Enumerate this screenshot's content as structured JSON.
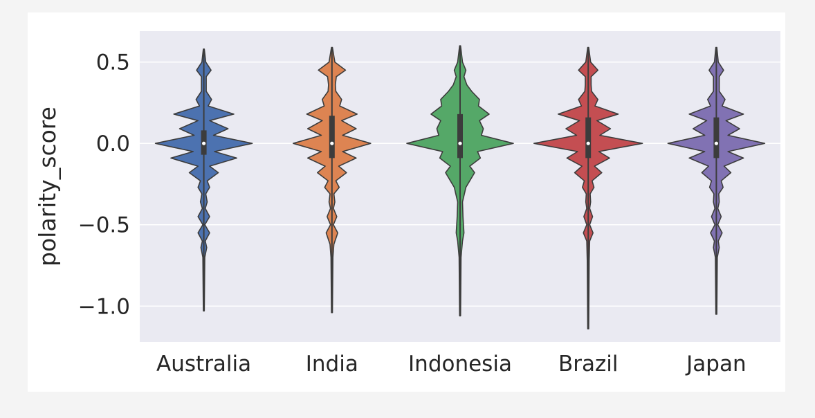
{
  "chart_data": {
    "type": "violin",
    "title": "",
    "xlabel": "",
    "ylabel": "polarity_score",
    "ylim": [
      -1.22,
      0.69
    ],
    "yticks": [
      0.5,
      0.0,
      -0.5,
      -1.0
    ],
    "ytick_labels": [
      "0.5",
      "0.0",
      "−0.5",
      "−1.0"
    ],
    "categories": [
      "Australia",
      "India",
      "Indonesia",
      "Brazil",
      "Japan"
    ],
    "grid": true,
    "legend": "none",
    "colors": {
      "Australia": "#4c72b0",
      "India": "#dd8452",
      "Indonesia": "#55a868",
      "Brazil": "#c44e52",
      "Japan": "#8172b3",
      "plot_background": "#eaeaf2",
      "grid": "#ffffff",
      "outline": "#3c3c3c"
    },
    "series": [
      {
        "category": "Australia",
        "range": [
          -1.03,
          0.58
        ],
        "median": 0.0,
        "quartiles": [
          -0.07,
          0.08
        ],
        "density": [
          [
            -1.03,
            0.01
          ],
          [
            -0.7,
            0.02
          ],
          [
            -0.64,
            0.06
          ],
          [
            -0.6,
            0.03
          ],
          [
            -0.55,
            0.12
          ],
          [
            -0.5,
            0.02
          ],
          [
            -0.45,
            0.12
          ],
          [
            -0.4,
            0.03
          ],
          [
            -0.36,
            0.07
          ],
          [
            -0.31,
            0.04
          ],
          [
            -0.27,
            0.12
          ],
          [
            -0.23,
            0.07
          ],
          [
            -0.18,
            0.3
          ],
          [
            -0.14,
            0.12
          ],
          [
            -0.09,
            0.68
          ],
          [
            -0.05,
            0.22
          ],
          [
            0.0,
            1.0
          ],
          [
            0.05,
            0.2
          ],
          [
            0.09,
            0.5
          ],
          [
            0.14,
            0.12
          ],
          [
            0.18,
            0.62
          ],
          [
            0.23,
            0.09
          ],
          [
            0.27,
            0.16
          ],
          [
            0.32,
            0.05
          ],
          [
            0.36,
            0.05
          ],
          [
            0.41,
            0.05
          ],
          [
            0.45,
            0.15
          ],
          [
            0.5,
            0.04
          ],
          [
            0.58,
            0.01
          ]
        ]
      },
      {
        "category": "India",
        "range": [
          -1.04,
          0.59
        ],
        "median": 0.0,
        "quartiles": [
          -0.09,
          0.17
        ],
        "density": [
          [
            -1.04,
            0.01
          ],
          [
            -0.7,
            0.02
          ],
          [
            -0.62,
            0.04
          ],
          [
            -0.55,
            0.12
          ],
          [
            -0.5,
            0.03
          ],
          [
            -0.45,
            0.1
          ],
          [
            -0.4,
            0.03
          ],
          [
            -0.36,
            0.06
          ],
          [
            -0.31,
            0.04
          ],
          [
            -0.27,
            0.15
          ],
          [
            -0.23,
            0.08
          ],
          [
            -0.18,
            0.3
          ],
          [
            -0.14,
            0.14
          ],
          [
            -0.09,
            0.5
          ],
          [
            -0.05,
            0.22
          ],
          [
            0.0,
            0.8
          ],
          [
            0.05,
            0.22
          ],
          [
            0.09,
            0.5
          ],
          [
            0.14,
            0.2
          ],
          [
            0.18,
            0.52
          ],
          [
            0.23,
            0.16
          ],
          [
            0.27,
            0.2
          ],
          [
            0.32,
            0.08
          ],
          [
            0.36,
            0.07
          ],
          [
            0.41,
            0.09
          ],
          [
            0.45,
            0.28
          ],
          [
            0.5,
            0.06
          ],
          [
            0.59,
            0.01
          ]
        ]
      },
      {
        "category": "Indonesia",
        "range": [
          -1.06,
          0.6
        ],
        "median": 0.0,
        "quartiles": [
          -0.09,
          0.18
        ],
        "density": [
          [
            -1.06,
            0.01
          ],
          [
            -0.7,
            0.02
          ],
          [
            -0.6,
            0.05
          ],
          [
            -0.55,
            0.08
          ],
          [
            -0.45,
            0.06
          ],
          [
            -0.36,
            0.05
          ],
          [
            -0.27,
            0.12
          ],
          [
            -0.18,
            0.3
          ],
          [
            -0.14,
            0.2
          ],
          [
            -0.09,
            0.42
          ],
          [
            -0.05,
            0.36
          ],
          [
            0.0,
            1.1
          ],
          [
            0.05,
            0.44
          ],
          [
            0.09,
            0.48
          ],
          [
            0.14,
            0.4
          ],
          [
            0.18,
            0.6
          ],
          [
            0.23,
            0.38
          ],
          [
            0.27,
            0.4
          ],
          [
            0.32,
            0.24
          ],
          [
            0.36,
            0.14
          ],
          [
            0.41,
            0.08
          ],
          [
            0.45,
            0.12
          ],
          [
            0.5,
            0.05
          ],
          [
            0.6,
            0.01
          ]
        ]
      },
      {
        "category": "Brazil",
        "range": [
          -1.14,
          0.59
        ],
        "median": 0.0,
        "quartiles": [
          -0.09,
          0.16
        ],
        "density": [
          [
            -1.14,
            0.01
          ],
          [
            -0.72,
            0.02
          ],
          [
            -0.6,
            0.03
          ],
          [
            -0.55,
            0.1
          ],
          [
            -0.5,
            0.03
          ],
          [
            -0.45,
            0.09
          ],
          [
            -0.4,
            0.03
          ],
          [
            -0.36,
            0.05
          ],
          [
            -0.31,
            0.04
          ],
          [
            -0.27,
            0.12
          ],
          [
            -0.23,
            0.08
          ],
          [
            -0.18,
            0.28
          ],
          [
            -0.14,
            0.13
          ],
          [
            -0.09,
            0.44
          ],
          [
            -0.05,
            0.22
          ],
          [
            0.0,
            1.12
          ],
          [
            0.05,
            0.24
          ],
          [
            0.09,
            0.46
          ],
          [
            0.14,
            0.18
          ],
          [
            0.18,
            0.62
          ],
          [
            0.23,
            0.14
          ],
          [
            0.27,
            0.2
          ],
          [
            0.32,
            0.07
          ],
          [
            0.36,
            0.06
          ],
          [
            0.41,
            0.06
          ],
          [
            0.45,
            0.2
          ],
          [
            0.5,
            0.05
          ],
          [
            0.59,
            0.01
          ]
        ]
      },
      {
        "category": "Japan",
        "range": [
          -1.05,
          0.59
        ],
        "median": 0.0,
        "quartiles": [
          -0.09,
          0.16
        ],
        "density": [
          [
            -1.05,
            0.01
          ],
          [
            -0.7,
            0.02
          ],
          [
            -0.64,
            0.06
          ],
          [
            -0.6,
            0.04
          ],
          [
            -0.55,
            0.12
          ],
          [
            -0.5,
            0.03
          ],
          [
            -0.45,
            0.1
          ],
          [
            -0.4,
            0.03
          ],
          [
            -0.36,
            0.06
          ],
          [
            -0.31,
            0.05
          ],
          [
            -0.27,
            0.14
          ],
          [
            -0.23,
            0.1
          ],
          [
            -0.18,
            0.3
          ],
          [
            -0.14,
            0.16
          ],
          [
            -0.09,
            0.56
          ],
          [
            -0.05,
            0.24
          ],
          [
            0.0,
            1.0
          ],
          [
            0.05,
            0.24
          ],
          [
            0.09,
            0.48
          ],
          [
            0.14,
            0.2
          ],
          [
            0.18,
            0.56
          ],
          [
            0.23,
            0.12
          ],
          [
            0.27,
            0.18
          ],
          [
            0.32,
            0.06
          ],
          [
            0.36,
            0.06
          ],
          [
            0.41,
            0.06
          ],
          [
            0.45,
            0.15
          ],
          [
            0.5,
            0.04
          ],
          [
            0.59,
            0.01
          ]
        ]
      }
    ]
  }
}
